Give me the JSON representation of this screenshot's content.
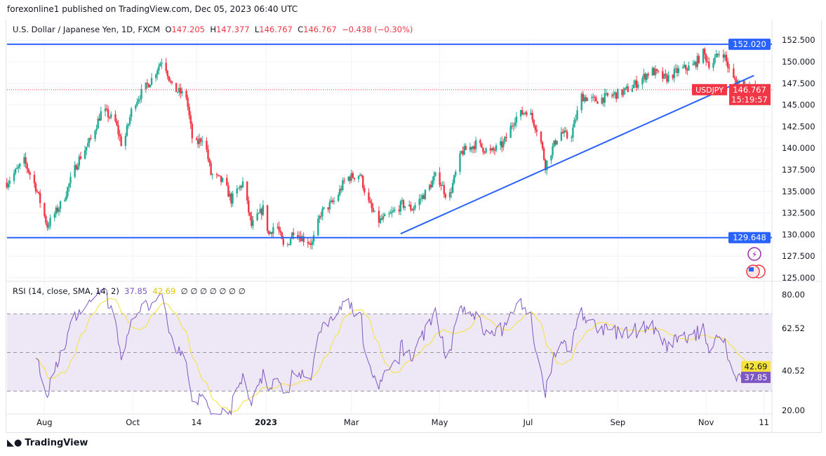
{
  "header": {
    "published": "forexonline1 published on TradingView.com, Dec 05, 2023 06:40 UTC"
  },
  "legend": {
    "symbol": "U.S. Dollar / Japanese Yen, 1D, FXCM",
    "o_label": "O",
    "o": "147.205",
    "h_label": "H",
    "h": "147.377",
    "l_label": "L",
    "l": "146.767",
    "c_label": "C",
    "c": "146.767",
    "change": "−0.438 (−0.30%)"
  },
  "rsi_legend": {
    "label": "RSI (14, close, SMA, 14, 2)",
    "rsi": "37.85",
    "sma": "42.69",
    "empty": "∅ ∅ ∅ ∅ ∅ ∅ ∅"
  },
  "footer": {
    "logo": "TradingView"
  },
  "colors": {
    "up": "#22ab94",
    "down": "#f23645",
    "line": "#2962ff",
    "rsi": "#7e57c2",
    "rsi_ma": "#f7e13b",
    "band": "#ede7f6"
  },
  "icons": [
    "lightning-icon",
    "us-flag-icon",
    "tradingview-logo-icon"
  ],
  "chart_data": [
    {
      "type": "candlestick",
      "symbol_tag": "USDJPY",
      "last_price": "146.767",
      "countdown": "15:19:57",
      "ylim": [
        125,
        152.5
      ],
      "yticks": [
        "152.500",
        "150.000",
        "147.500",
        "145.000",
        "142.500",
        "140.000",
        "137.500",
        "135.000",
        "132.500",
        "130.000",
        "127.500",
        "125.000"
      ],
      "xticks": [
        {
          "label": "Aug",
          "date": "2022-08-01"
        },
        {
          "label": "Oct",
          "date": "2022-10-01"
        },
        {
          "label": "14",
          "date": "2022-11-14"
        },
        {
          "label": "2023",
          "date": "2023-01-01"
        },
        {
          "label": "Mar",
          "date": "2023-03-01"
        },
        {
          "label": "May",
          "date": "2023-05-01"
        },
        {
          "label": "Jul",
          "date": "2023-07-01"
        },
        {
          "label": "Sep",
          "date": "2023-09-01"
        },
        {
          "label": "Nov",
          "date": "2023-11-01"
        },
        {
          "label": "11",
          "date": "2023-12-11"
        }
      ],
      "close_path": [
        [
          "2022-07-06",
          136
        ],
        [
          "2022-07-18",
          138.5
        ],
        [
          "2022-07-26",
          135.5
        ],
        [
          "2022-08-03",
          131
        ],
        [
          "2022-08-14",
          134
        ],
        [
          "2022-08-24",
          138.5
        ],
        [
          "2022-09-02",
          141
        ],
        [
          "2022-09-10",
          144.5
        ],
        [
          "2022-09-19",
          143
        ],
        [
          "2022-09-24",
          140
        ],
        [
          "2022-10-01",
          145
        ],
        [
          "2022-10-14",
          148
        ],
        [
          "2022-10-22",
          150.5
        ],
        [
          "2022-10-28",
          147
        ],
        [
          "2022-11-07",
          146
        ],
        [
          "2022-11-12",
          140
        ],
        [
          "2022-11-19",
          141.5
        ],
        [
          "2022-11-24",
          137
        ],
        [
          "2022-12-03",
          136
        ],
        [
          "2022-12-08",
          134
        ],
        [
          "2022-12-16",
          136
        ],
        [
          "2022-12-22",
          131
        ],
        [
          "2022-12-30",
          133
        ],
        [
          "2023-01-03",
          130
        ],
        [
          "2023-01-08",
          131.5
        ],
        [
          "2023-01-14",
          128
        ],
        [
          "2023-01-20",
          130.5
        ],
        [
          "2023-01-27",
          129.5
        ],
        [
          "2023-02-02",
          129
        ],
        [
          "2023-02-08",
          132.5
        ],
        [
          "2023-02-18",
          134
        ],
        [
          "2023-02-25",
          136.5
        ],
        [
          "2023-03-07",
          137
        ],
        [
          "2023-03-12",
          134
        ],
        [
          "2023-03-19",
          131.5
        ],
        [
          "2023-03-26",
          132
        ],
        [
          "2023-04-05",
          133.5
        ],
        [
          "2023-04-12",
          133
        ],
        [
          "2023-04-22",
          135
        ],
        [
          "2023-04-29",
          137
        ],
        [
          "2023-05-07",
          134
        ],
        [
          "2023-05-16",
          139.5
        ],
        [
          "2023-05-26",
          140.5
        ],
        [
          "2023-06-05",
          139.5
        ],
        [
          "2023-06-14",
          140.5
        ],
        [
          "2023-06-22",
          143.5
        ],
        [
          "2023-07-01",
          144.5
        ],
        [
          "2023-07-09",
          141.5
        ],
        [
          "2023-07-13",
          138
        ],
        [
          "2023-07-23",
          142
        ],
        [
          "2023-07-30",
          141
        ],
        [
          "2023-08-07",
          146
        ],
        [
          "2023-08-16",
          145.5
        ],
        [
          "2023-08-26",
          146
        ],
        [
          "2023-09-05",
          146.5
        ],
        [
          "2023-09-14",
          147.5
        ],
        [
          "2023-09-24",
          149
        ],
        [
          "2023-10-04",
          148
        ],
        [
          "2023-10-13",
          149
        ],
        [
          "2023-10-23",
          149.5
        ],
        [
          "2023-10-30",
          151
        ],
        [
          "2023-11-04",
          149.5
        ],
        [
          "2023-11-12",
          151.5
        ],
        [
          "2023-11-19",
          148
        ],
        [
          "2023-11-26",
          147.5
        ],
        [
          "2023-12-05",
          146.767
        ]
      ],
      "levels": [
        {
          "label": "152.020",
          "price": 152.02
        },
        {
          "label": "129.648",
          "price": 129.648
        }
      ],
      "trendline": [
        [
          "2023-04-04",
          130.1
        ],
        [
          "2023-12-04",
          148.4
        ]
      ]
    },
    {
      "type": "line",
      "title": "RSI (14, close, SMA, 14, 2)",
      "ylim": [
        20,
        80
      ],
      "yticks": [
        "80.00",
        "62.52",
        "40.52",
        "20.00"
      ],
      "bands": [
        30,
        50,
        70
      ],
      "last": {
        "rsi": "37.85",
        "sma": "42.69"
      }
    }
  ]
}
